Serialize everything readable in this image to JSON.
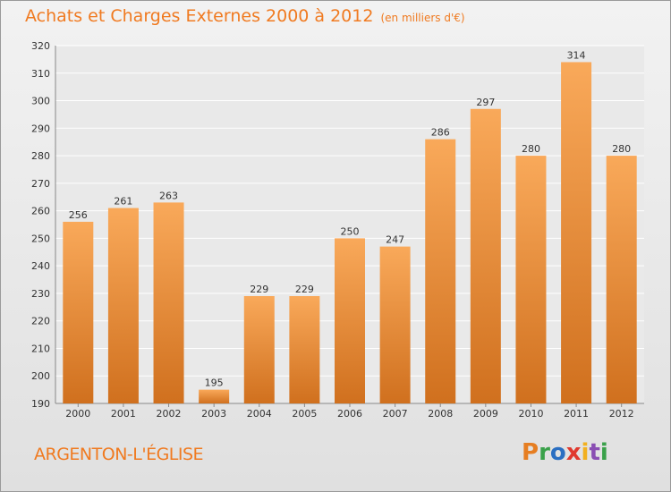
{
  "chart_data": {
    "type": "bar",
    "title": "Achats et Charges Externes 2000 à 2012",
    "subtitle": "(en milliers d'€)",
    "categories": [
      "2000",
      "2001",
      "2002",
      "2003",
      "2004",
      "2005",
      "2006",
      "2007",
      "2008",
      "2009",
      "2010",
      "2011",
      "2012"
    ],
    "values": [
      256,
      261,
      263,
      195,
      229,
      229,
      250,
      247,
      286,
      297,
      280,
      314,
      280
    ],
    "ylim": [
      190,
      320
    ],
    "yticks": [
      190,
      200,
      210,
      220,
      230,
      240,
      250,
      260,
      270,
      280,
      290,
      300,
      310,
      320
    ],
    "grid": true,
    "legend": "none",
    "colors": {
      "bar_light": "#f9a95a",
      "bar_dark": "#d0701e",
      "title": "#f07a20"
    }
  },
  "footer": {
    "commune": "ARGENTON-L'ÉGLISE",
    "logo": "Proxiti",
    "logo_colors": [
      "#e67e22",
      "#3aa14a",
      "#2b6fc2",
      "#e03a2f",
      "#f2b01e",
      "#8a4fb3",
      "#3aa14a"
    ]
  }
}
